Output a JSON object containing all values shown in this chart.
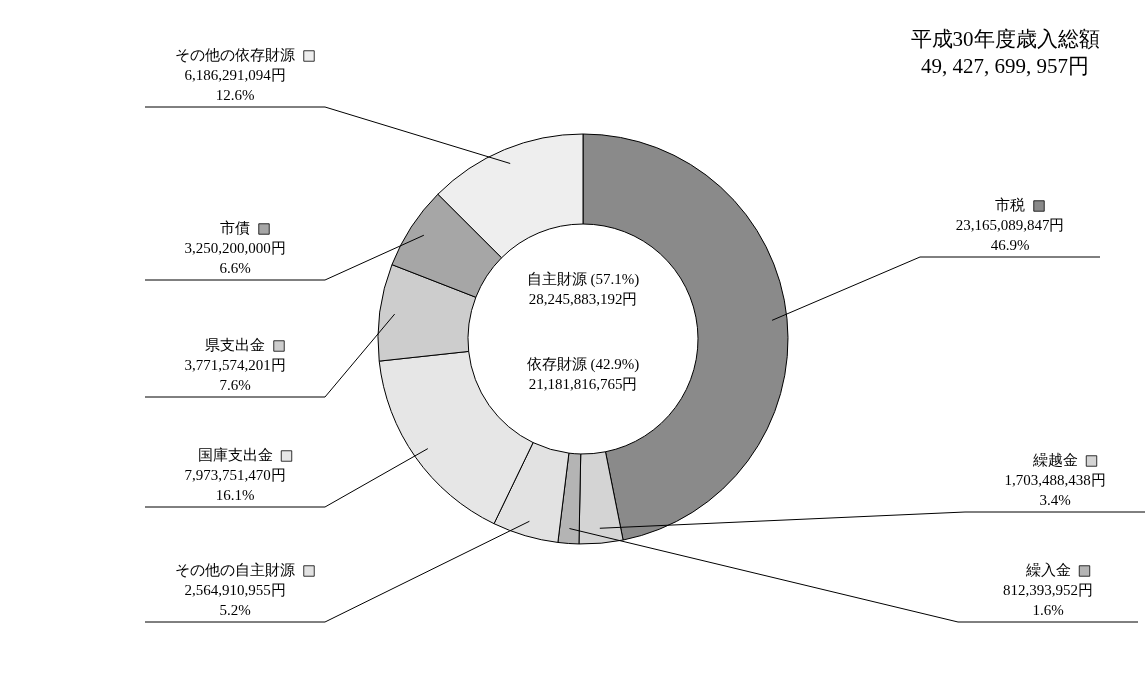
{
  "chart_data": {
    "type": "donut",
    "title": "平成30年度歳入総額\n49, 427, 699, 957円",
    "categories": [
      "市税",
      "繰越金",
      "繰入金",
      "その他の自主財源",
      "国庫支出金",
      "県支出金",
      "市債",
      "その他の依存財源"
    ],
    "values": [
      23165089847,
      1703488438,
      812393952,
      2564910955,
      7973751470,
      3771574201,
      3250200000,
      6186291094
    ],
    "value_labels": [
      "23,165,089,847円\n46.9%",
      "1,703,488,438円\n3.4%",
      "812,393,952円\n1.6%",
      "2,564,910,955円\n5.2%",
      "7,973,751,470円\n16.1%",
      "3,771,574,201円\n7.6%",
      "3,250,200,000円\n6.6%",
      "6,186,291,094円\n12.6%"
    ],
    "colors": [
      "#8a8a8a",
      "#d4d4d4",
      "#b4b4b4",
      "#e2e2e2",
      "#e6e6e6",
      "#cdcdcd",
      "#a6a6a6",
      "#eeeeee"
    ],
    "annotations": [
      "自主財源 (57.1%)\n28,245,883,192円",
      "依存財源 (42.9%)\n21,181,816,765円"
    ],
    "legend": "top right"
  }
}
